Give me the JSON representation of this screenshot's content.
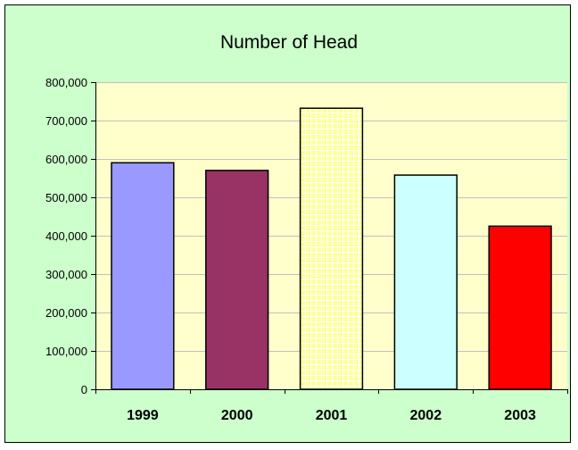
{
  "chart_data": {
    "type": "bar",
    "title": "Number of Head",
    "categories": [
      "1999",
      "2000",
      "2001",
      "2002",
      "2003"
    ],
    "values": [
      590000,
      570000,
      732000,
      558000,
      425000
    ],
    "ylim": [
      0,
      800000
    ],
    "yticks": [
      "0",
      "100,000",
      "200,000",
      "300,000",
      "400,000",
      "500,000",
      "600,000",
      "700,000",
      "800,000"
    ],
    "grid": true,
    "legend": "none",
    "colors": {
      "frame_bg": "#ccffcc",
      "plot_bg": "#ffffcc",
      "bars": [
        "#9999ff",
        "#993366",
        "#ffff99",
        "#ccffff",
        "#ff0000"
      ],
      "pattern_bar_index": 2,
      "pattern_color": "#ffffff"
    }
  }
}
